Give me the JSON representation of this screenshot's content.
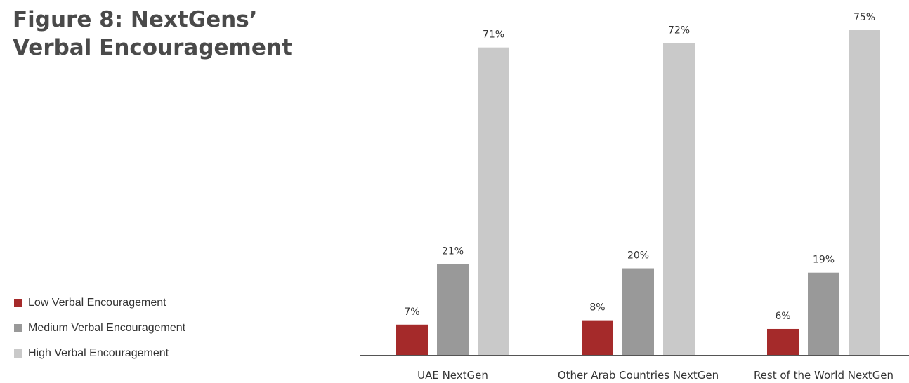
{
  "title": {
    "line1": "Figure 8: NextGens’",
    "line2": "Verbal Encouragement"
  },
  "chart_data": {
    "type": "bar",
    "categories": [
      "UAE NextGen",
      "Other Arab Countries NextGen",
      "Rest of the World NextGen"
    ],
    "series": [
      {
        "name": "Low Verbal Encouragement",
        "color": "#a52a2a",
        "values": [
          7,
          8,
          6
        ],
        "labels": [
          "7%",
          "8%",
          "6%"
        ]
      },
      {
        "name": "Medium Verbal Encouragement",
        "color": "#999999",
        "values": [
          21,
          20,
          19
        ],
        "labels": [
          "21%",
          "20%",
          "19%"
        ]
      },
      {
        "name": "High Verbal Encouragement",
        "color": "#c9c9c9",
        "values": [
          71,
          72,
          75
        ],
        "labels": [
          "71%",
          "72%",
          "75%"
        ]
      }
    ],
    "ylim": [
      0,
      75
    ],
    "unit": "%",
    "legend_position": "left",
    "grid": false
  }
}
